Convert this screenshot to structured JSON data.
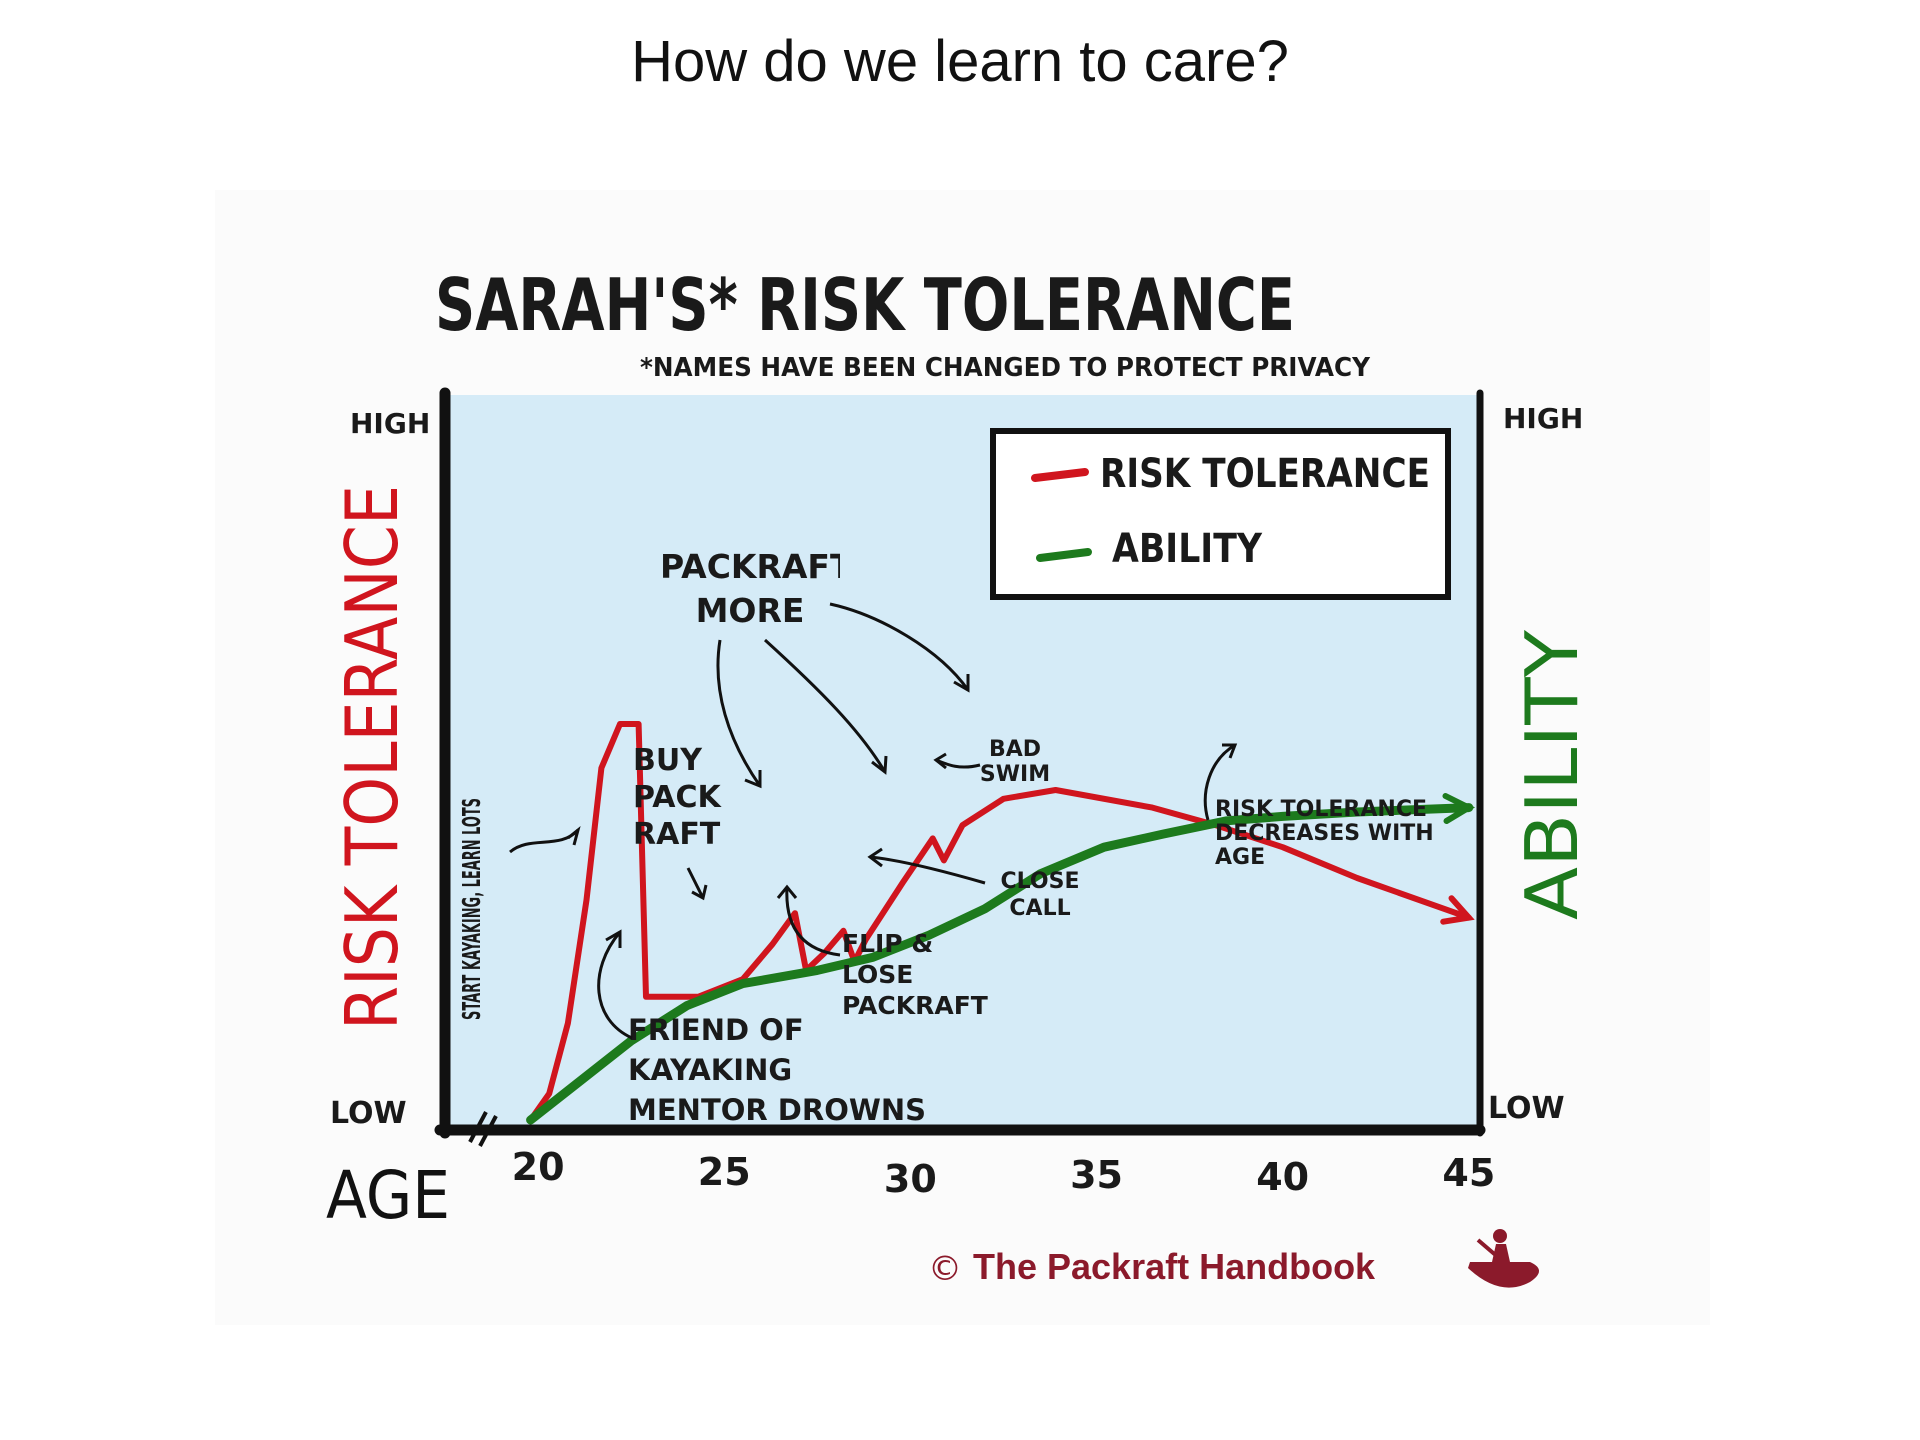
{
  "slide": {
    "title": "How do we learn to care?"
  },
  "chart_data": {
    "type": "line",
    "title": "SARAH'S* RISK TOLERANCE",
    "subtitle": "*NAMES HAVE BEEN CHANGED TO PROTECT PRIVACY",
    "xlabel": "AGE",
    "ylabel_left": "RISK TOLERANCE",
    "ylabel_right": "ABILITY",
    "y_high_label": "HIGH",
    "y_low_label": "LOW",
    "xlim": [
      17.5,
      45.3
    ],
    "ylim": [
      0,
      100
    ],
    "x_ticks": [
      20,
      25,
      30,
      35,
      40,
      45
    ],
    "grid": false,
    "legend_position": "top-right",
    "background": "#d5ebf7",
    "series": [
      {
        "name": "RISK TOLERANCE",
        "color": "#d0151e",
        "points": [
          [
            19.8,
            0
          ],
          [
            20.3,
            6
          ],
          [
            20.8,
            22
          ],
          [
            21.3,
            50
          ],
          [
            21.7,
            80
          ],
          [
            22.2,
            90
          ],
          [
            22.7,
            90
          ],
          [
            22.9,
            28
          ],
          [
            24.3,
            28
          ],
          [
            25.5,
            32
          ],
          [
            26.3,
            40
          ],
          [
            26.9,
            47
          ],
          [
            27.2,
            34
          ],
          [
            27.7,
            38
          ],
          [
            28.2,
            43
          ],
          [
            28.5,
            36
          ],
          [
            28.8,
            41
          ],
          [
            29.8,
            54
          ],
          [
            30.6,
            64
          ],
          [
            30.9,
            59
          ],
          [
            31.4,
            67
          ],
          [
            32.5,
            73
          ],
          [
            33.9,
            75
          ],
          [
            36.5,
            71
          ],
          [
            38.2,
            67
          ],
          [
            40.0,
            62
          ],
          [
            42.0,
            55
          ],
          [
            45.0,
            46
          ]
        ]
      },
      {
        "name": "ABILITY",
        "color": "#1d7a1d",
        "points": [
          [
            19.8,
            0
          ],
          [
            21.0,
            8
          ],
          [
            22.5,
            18
          ],
          [
            24.0,
            26
          ],
          [
            25.5,
            31
          ],
          [
            27.5,
            34
          ],
          [
            29.0,
            37
          ],
          [
            30.5,
            42
          ],
          [
            32.0,
            48
          ],
          [
            33.5,
            56
          ],
          [
            35.2,
            62
          ],
          [
            36.8,
            65
          ],
          [
            38.5,
            68
          ],
          [
            40.0,
            69
          ],
          [
            42.0,
            70
          ],
          [
            45.0,
            71
          ]
        ]
      }
    ],
    "annotations": [
      {
        "text": "START KAYAKING, LEARN LOTS",
        "x": 21.2,
        "y": 50
      },
      {
        "text": "FRIEND OF KAYAKING MENTOR DROWNS",
        "x": 22.9,
        "y": 28
      },
      {
        "text": "BUY PACK RAFT",
        "x": 25.0,
        "y": 29
      },
      {
        "text": "PACKRAFT MORE",
        "x": [
          26.7,
          28.6,
          31.2
        ],
        "y": [
          47,
          40,
          68
        ]
      },
      {
        "text": "FLIP & LOSE PACKRAFT",
        "x": 27.2,
        "y": 34
      },
      {
        "text": "CLOSE CALL",
        "x": 28.6,
        "y": 38
      },
      {
        "text": "BAD SWIM",
        "x": 31.0,
        "y": 59
      },
      {
        "text": "RISK TOLERANCE DECREASES WITH AGE",
        "x": 38.8,
        "y": 67
      }
    ],
    "legend": [
      {
        "label": "RISK TOLERANCE",
        "color": "#d0151e"
      },
      {
        "label": "ABILITY",
        "color": "#1d7a1d"
      }
    ]
  },
  "branding": {
    "copyright": "©",
    "name": "The Packraft Handbook",
    "logo_icon": "packraft-paddler-icon",
    "color": "#8b1a2b"
  }
}
